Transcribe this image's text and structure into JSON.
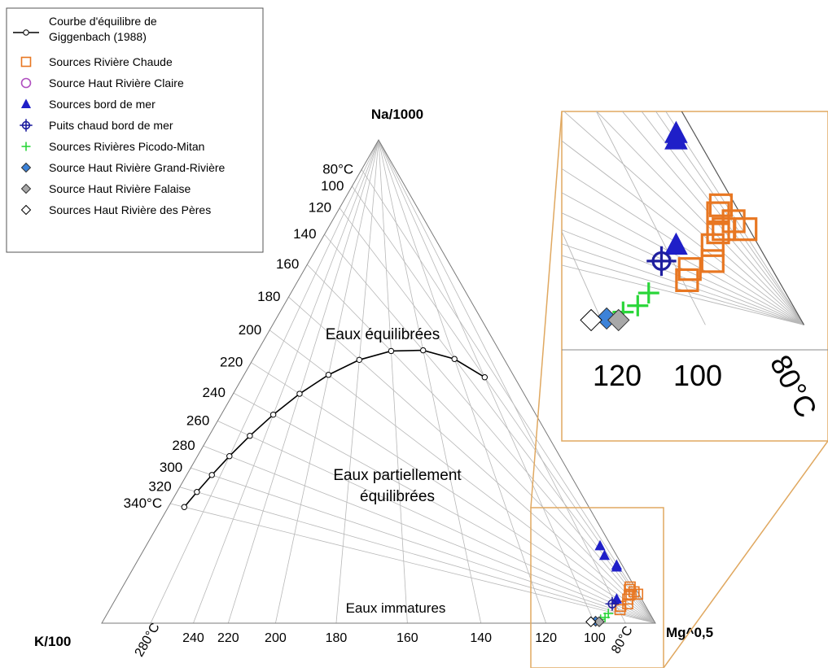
{
  "legend": {
    "items": [
      {
        "label": "Courbe d'équilibre de Giggenbach (1988)",
        "lines": [
          "Courbe d'équilibre de",
          "Giggenbach (1988)"
        ],
        "marker": "line-circle-icon",
        "color": "#000000"
      },
      {
        "label": "Sources Rivière Chaude",
        "marker": "open-square-icon",
        "color": "#e87722"
      },
      {
        "label": "Source Haut Rivière Claire",
        "marker": "open-circle-icon",
        "color": "#b04fc0"
      },
      {
        "label": "Sources bord de mer",
        "marker": "filled-triangle-icon",
        "color": "#1f1fc8"
      },
      {
        "label": "Puits chaud bord de mer",
        "marker": "open-circle-cross-icon",
        "color": "#1f1f9f"
      },
      {
        "label": "Sources Rivières Picodo-Mitan",
        "marker": "plus-icon",
        "color": "#2bd63a"
      },
      {
        "label": "Source Haut Rivière Grand-Rivière",
        "marker": "filled-diamond-icon",
        "color": "#3c82d8"
      },
      {
        "label": "Source Haut Rivière Falaise",
        "marker": "filled-diamond-icon",
        "color": "#a8a8a8"
      },
      {
        "label": "Sources Haut Rivière des Pères",
        "marker": "open-diamond-icon",
        "color": "#000000"
      }
    ]
  },
  "vertices": {
    "top": "Na/1000",
    "left": "K/100",
    "right": "Mg^0,5"
  },
  "regions": {
    "equilibrated": "Eaux équilibrées",
    "partial_line1": "Eaux partiellement",
    "partial_line2": "équilibrées",
    "immature": "Eaux immatures"
  },
  "colors": {
    "accent_box": "#e0a860",
    "grid": "#b8b8b8",
    "frame": "#333333"
  },
  "chart_data": {
    "type": "scatter",
    "subtype": "ternary (Giggenbach Na-K-Mg diagram)",
    "apexes": [
      "Na/1000",
      "K/100",
      "Mg^0,5"
    ],
    "kna_isotherms_left": [
      {
        "t": 80,
        "label": "80°C"
      },
      {
        "t": 100,
        "label": "100"
      },
      {
        "t": 120,
        "label": "120"
      },
      {
        "t": 140,
        "label": "140"
      },
      {
        "t": 160,
        "label": "160"
      },
      {
        "t": 180,
        "label": "180"
      },
      {
        "t": 200,
        "label": "200"
      },
      {
        "t": 220,
        "label": "220"
      },
      {
        "t": 240,
        "label": "240"
      },
      {
        "t": 260,
        "label": "260"
      },
      {
        "t": 280,
        "label": "280"
      },
      {
        "t": 300,
        "label": "300"
      },
      {
        "t": 320,
        "label": "320"
      },
      {
        "t": 340,
        "label": "340°C"
      }
    ],
    "kmg_isotherms_bottom": [
      {
        "t": 80,
        "label": "80°C"
      },
      {
        "t": 100,
        "label": "100"
      },
      {
        "t": 120,
        "label": "120"
      },
      {
        "t": 140,
        "label": "140"
      },
      {
        "t": 160,
        "label": "160"
      },
      {
        "t": 180,
        "label": "180"
      },
      {
        "t": 200,
        "label": "200"
      },
      {
        "t": 220,
        "label": "220"
      },
      {
        "t": 240,
        "label": "240"
      },
      {
        "t": 280,
        "label": "280°C"
      }
    ],
    "equilibrium_curve_t": [
      340,
      320,
      300,
      280,
      260,
      240,
      220,
      200,
      180,
      160,
      140,
      120,
      100
    ],
    "series": [
      {
        "name": "Sources Rivière Chaude",
        "marker": "square",
        "points": [
          {
            "na": 0.06,
            "k": 0.002,
            "mg": 0.938
          },
          {
            "na": 0.075,
            "k": 0.008,
            "mg": 0.917
          },
          {
            "na": 0.065,
            "k": 0.006,
            "mg": 0.929
          },
          {
            "na": 0.07,
            "k": 0.012,
            "mg": 0.918
          },
          {
            "na": 0.06,
            "k": 0.014,
            "mg": 0.926
          },
          {
            "na": 0.058,
            "k": 0.018,
            "mg": 0.924
          },
          {
            "na": 0.05,
            "k": 0.025,
            "mg": 0.925
          },
          {
            "na": 0.04,
            "k": 0.03,
            "mg": 0.93
          },
          {
            "na": 0.035,
            "k": 0.045,
            "mg": 0.92
          },
          {
            "na": 0.028,
            "k": 0.05,
            "mg": 0.922
          }
        ]
      },
      {
        "name": "Sources bord de mer",
        "marker": "triangle",
        "points": [
          {
            "na": 0.16,
            "k": 0.02,
            "mg": 0.82
          },
          {
            "na": 0.14,
            "k": 0.022,
            "mg": 0.838
          },
          {
            "na": 0.12,
            "k": 0.01,
            "mg": 0.87
          },
          {
            "na": 0.116,
            "k": 0.012,
            "mg": 0.872
          },
          {
            "na": 0.05,
            "k": 0.045,
            "mg": 0.905
          }
        ]
      },
      {
        "name": "Puits chaud bord de mer",
        "marker": "circle-cross",
        "points": [
          {
            "na": 0.04,
            "k": 0.058,
            "mg": 0.902
          }
        ]
      },
      {
        "name": "Sources Rivières Picodo-Mitan",
        "marker": "plus",
        "points": [
          {
            "na": 0.02,
            "k": 0.075,
            "mg": 0.905
          },
          {
            "na": 0.012,
            "k": 0.085,
            "mg": 0.903
          },
          {
            "na": 0.008,
            "k": 0.095,
            "mg": 0.897
          }
        ]
      },
      {
        "name": "Source Haut Rivière Grand-Rivière",
        "marker": "diamond",
        "points": [
          {
            "na": 0.004,
            "k": 0.106,
            "mg": 0.89
          }
        ]
      },
      {
        "name": "Source Haut Rivière Falaise",
        "marker": "diamond",
        "points": [
          {
            "na": 0.003,
            "k": 0.1,
            "mg": 0.897
          }
        ]
      },
      {
        "name": "Sources Haut Rivière des Pères",
        "marker": "diamond-open",
        "points": [
          {
            "na": 0.003,
            "k": 0.115,
            "mg": 0.882
          }
        ]
      }
    ],
    "inset": {
      "tick_labels": [
        "120",
        "100",
        "80°C"
      ]
    }
  }
}
